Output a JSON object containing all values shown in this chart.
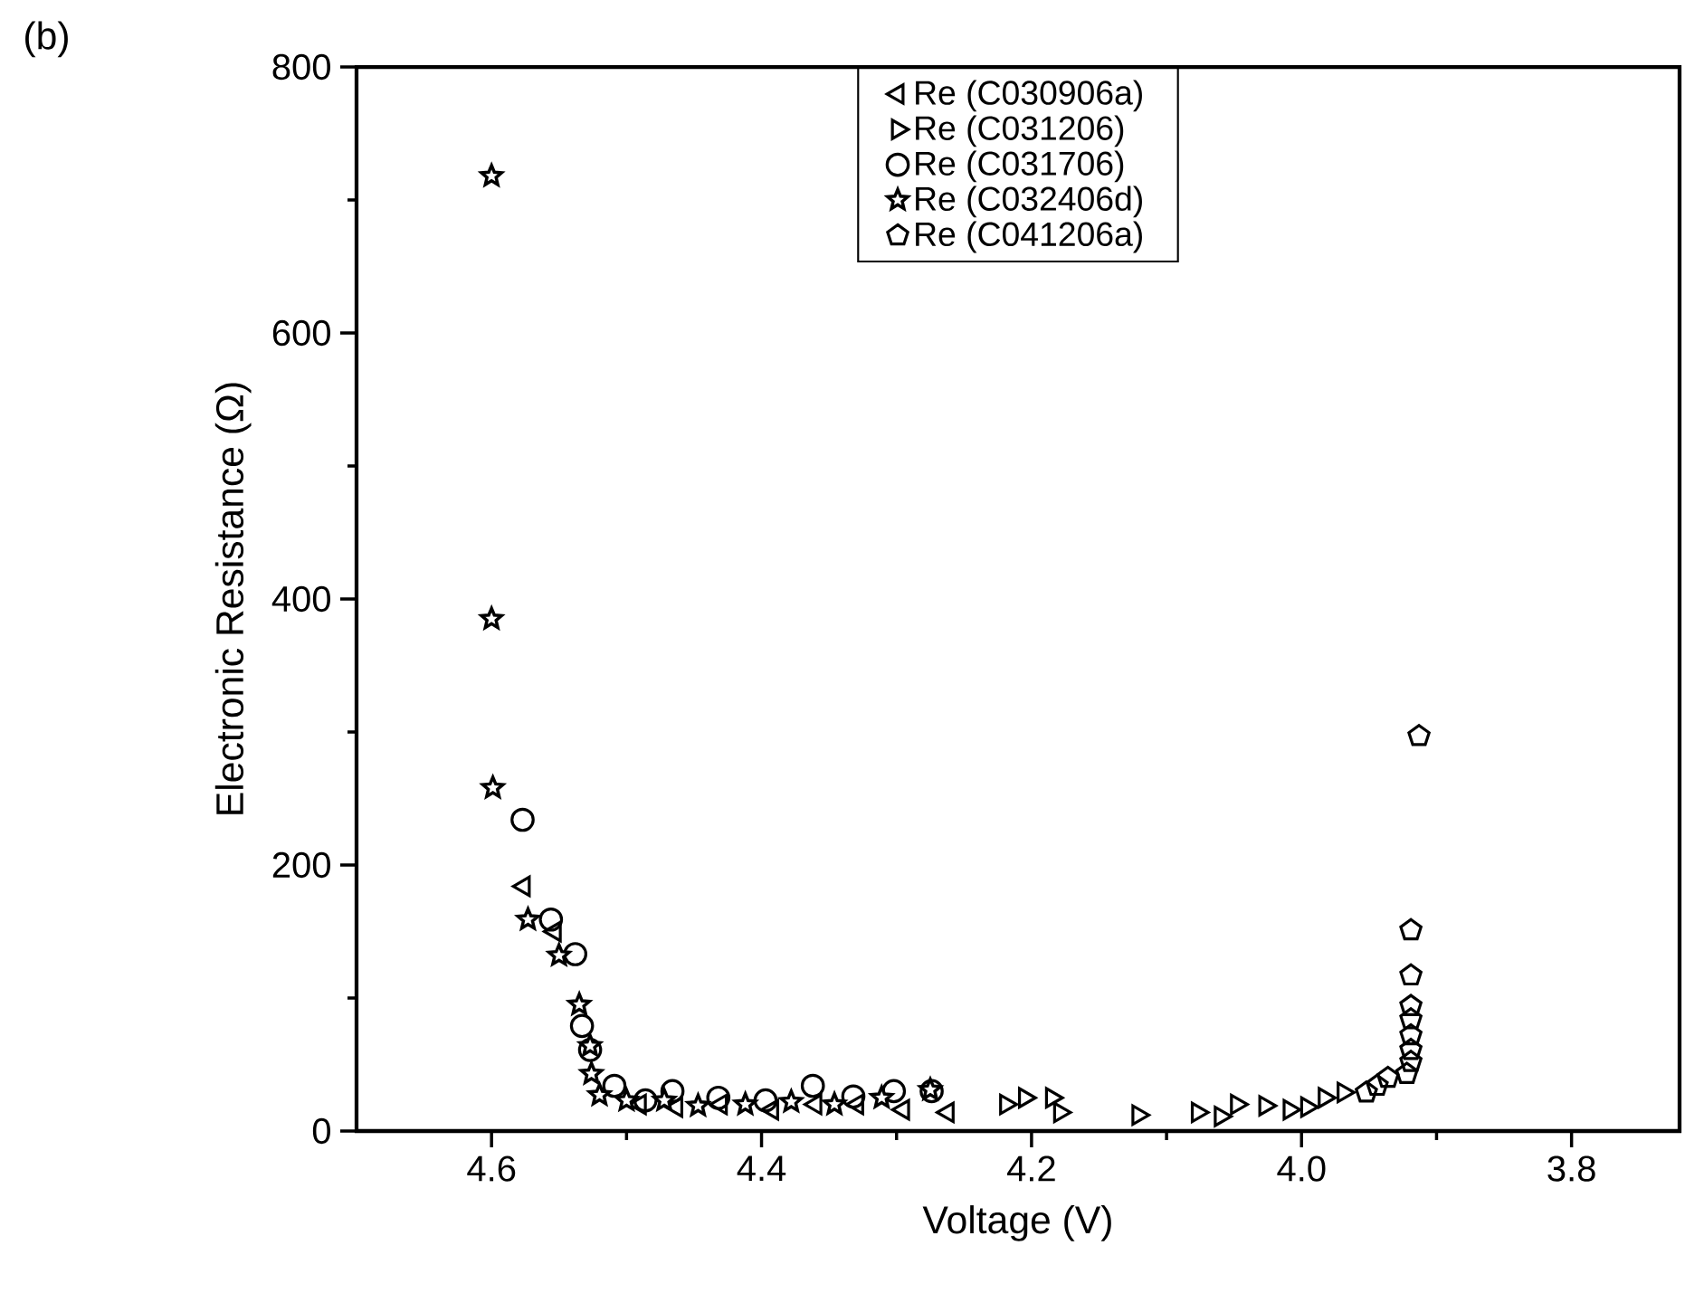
{
  "chart_data": {
    "type": "scatter",
    "xlabel": "Voltage (V)",
    "ylabel": "Electronic Resistance (Ω)",
    "annotations": [
      "(b)"
    ],
    "xlim": [
      4.7,
      3.72
    ],
    "ylim": [
      0,
      800
    ],
    "xticks": [
      4.6,
      4.4,
      4.2,
      {
        "value": 4.0,
        "label": "4.0"
      },
      3.8
    ],
    "yticks": [
      0,
      200,
      400,
      600,
      800
    ],
    "grid": false,
    "legend": "top",
    "series": [
      {
        "name": "Re (C030906a)",
        "color": "#000000",
        "marker": "triangle-left",
        "x": [
          4.576,
          4.553,
          4.519,
          4.49,
          4.463,
          4.43,
          4.392,
          4.36,
          4.329,
          4.295,
          4.262
        ],
        "values": [
          184,
          150,
          null,
          20,
          18,
          20,
          16,
          20,
          20,
          16,
          14
        ]
      },
      {
        "name": "Re (C031206)",
        "color": "#000000",
        "marker": "triangle-right",
        "x": [
          4.219,
          4.205,
          4.185,
          4.179,
          4.121,
          4.077,
          4.06,
          4.048,
          4.027,
          4.009,
          3.996,
          3.983,
          3.969
        ],
        "values": [
          20,
          25,
          25,
          14,
          12,
          14,
          11,
          20,
          19,
          16,
          18,
          25,
          29
        ]
      },
      {
        "name": "Re (C031706)",
        "color": "#000000",
        "marker": "circle",
        "x": [
          4.577,
          4.556,
          4.538,
          4.533,
          4.527,
          4.509,
          4.486,
          4.466,
          4.432,
          4.397,
          4.362,
          4.332,
          4.302,
          4.274
        ],
        "values": [
          234,
          159,
          133,
          79,
          61,
          34,
          23,
          30,
          25,
          23,
          34,
          26,
          30,
          30
        ]
      },
      {
        "name": "Re (C032406d)",
        "color": "#000000",
        "marker": "star",
        "x": [
          4.6,
          4.6,
          4.599,
          4.573,
          4.55,
          4.535,
          4.527,
          4.526,
          4.52,
          4.5,
          4.472,
          4.447,
          4.412,
          4.378,
          4.346,
          4.311,
          4.275
        ],
        "values": [
          718,
          385,
          258,
          159,
          132,
          95,
          64,
          43,
          27,
          23,
          23,
          19,
          20,
          22,
          20,
          25,
          31
        ]
      },
      {
        "name": "Re (C041206a)",
        "color": "#000000",
        "x": [
          3.913,
          3.919,
          3.919,
          3.919,
          3.919,
          3.919,
          3.919,
          3.919,
          3.922,
          3.936,
          3.944,
          3.952
        ],
        "values": [
          297,
          151,
          117,
          94,
          84,
          72,
          61,
          52,
          43,
          40,
          34,
          29
        ]
      }
    ]
  }
}
